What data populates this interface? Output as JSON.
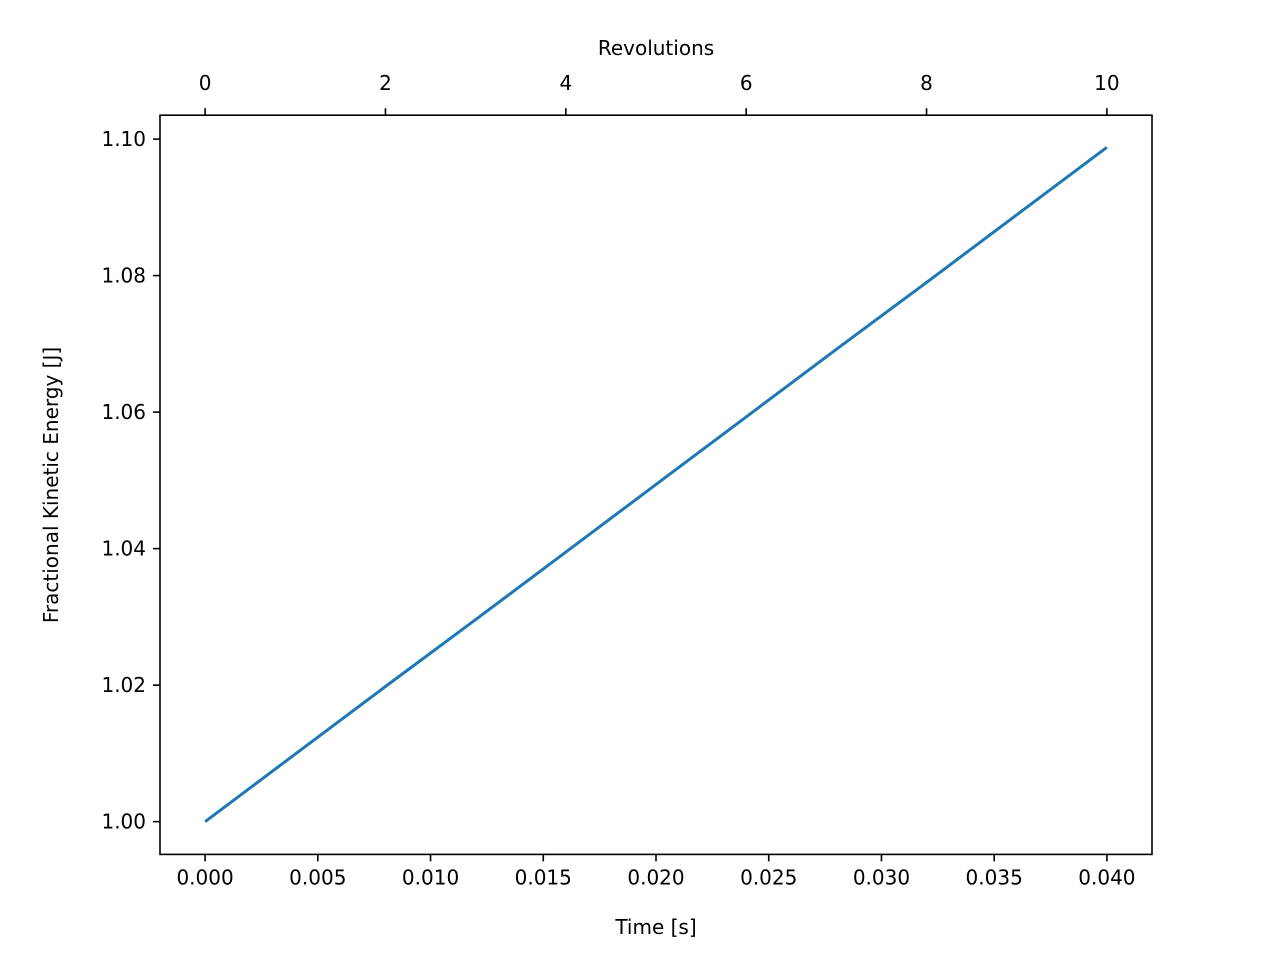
{
  "chart_data": {
    "type": "line",
    "title": "",
    "xlabel": "Time [s]",
    "ylabel": "Fractional Kinetic Energy [J]",
    "top_xlabel": "Revolutions",
    "xlim": [
      -0.002,
      0.042
    ],
    "ylim": [
      0.9952,
      1.1035
    ],
    "top_xlim": [
      -0.5,
      10.5
    ],
    "xticks": [
      0.0,
      0.005,
      0.01,
      0.015,
      0.02,
      0.025,
      0.03,
      0.035,
      0.04
    ],
    "xtick_labels": [
      "0.000",
      "0.005",
      "0.010",
      "0.015",
      "0.020",
      "0.025",
      "0.030",
      "0.035",
      "0.040"
    ],
    "yticks": [
      1.0,
      1.02,
      1.04,
      1.06,
      1.08,
      1.1
    ],
    "ytick_labels": [
      "1.00",
      "1.02",
      "1.04",
      "1.06",
      "1.08",
      "1.10"
    ],
    "top_xticks": [
      0,
      2,
      4,
      6,
      8,
      10
    ],
    "top_xtick_labels": [
      "0",
      "2",
      "4",
      "6",
      "8",
      "10"
    ],
    "grid": false,
    "series": [
      {
        "color": "#1f77b4",
        "x": [
          0.0,
          0.004,
          0.008,
          0.012,
          0.016,
          0.02,
          0.024,
          0.028,
          0.032,
          0.036,
          0.04
        ],
        "y": [
          1.0,
          1.0099,
          1.0198,
          1.0296,
          1.0395,
          1.0494,
          1.0593,
          1.0692,
          1.079,
          1.0889,
          1.0988
        ]
      }
    ]
  }
}
